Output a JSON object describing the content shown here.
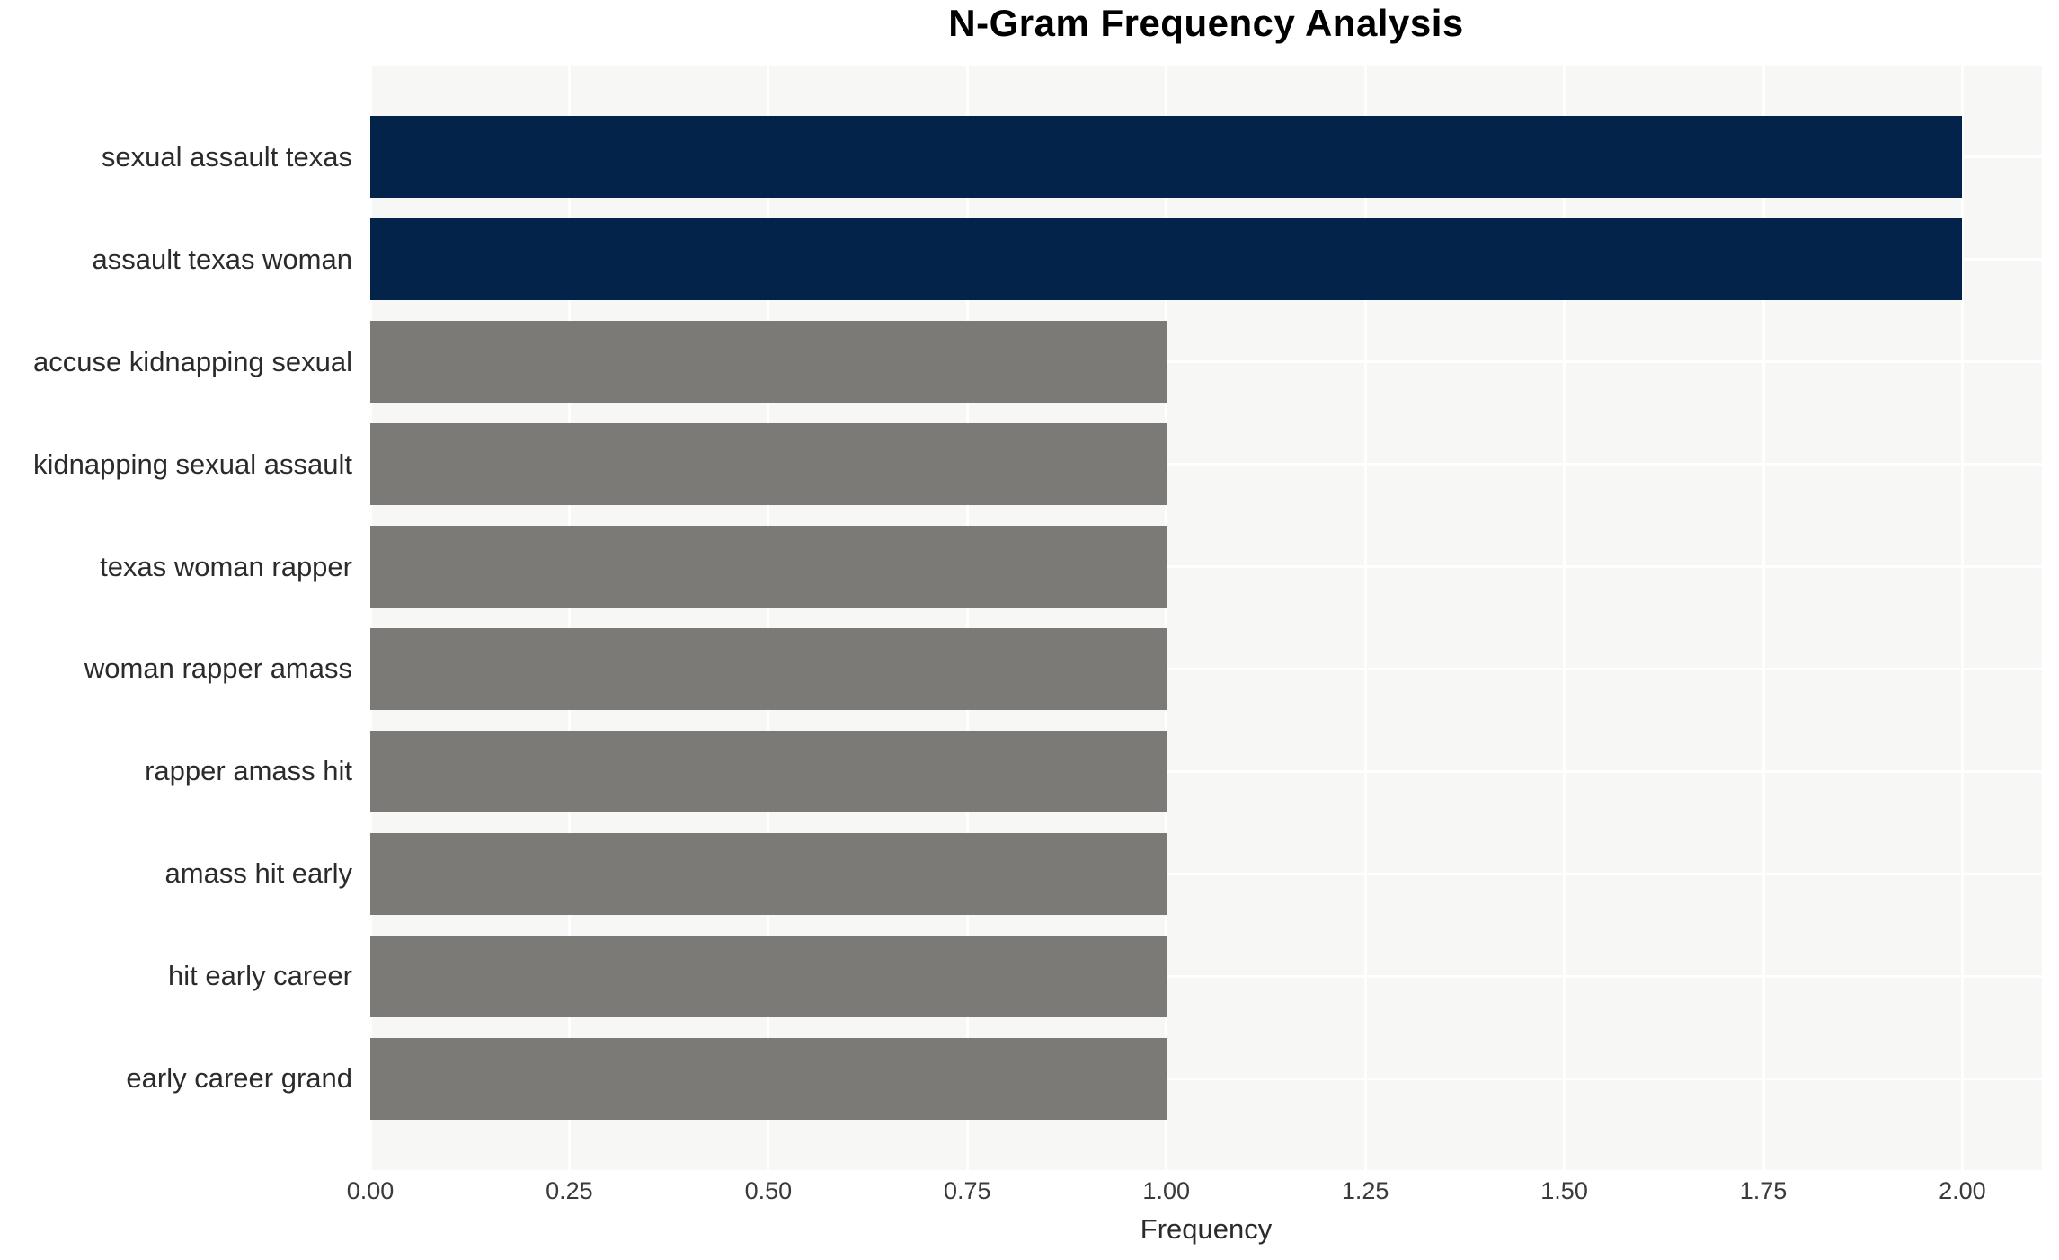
{
  "chart_data": {
    "type": "bar",
    "orientation": "horizontal",
    "title": "N-Gram Frequency Analysis",
    "xlabel": "Frequency",
    "ylabel": "",
    "categories": [
      "sexual assault texas",
      "assault texas woman",
      "accuse kidnapping sexual",
      "kidnapping sexual assault",
      "texas woman rapper",
      "woman rapper amass",
      "rapper amass hit",
      "amass hit early",
      "hit early career",
      "early career grand"
    ],
    "values": [
      2,
      2,
      1,
      1,
      1,
      1,
      1,
      1,
      1,
      1
    ],
    "bar_colors": [
      "#03234b",
      "#03234b",
      "#7b7a76",
      "#7b7a76",
      "#7b7a76",
      "#7b7a76",
      "#7b7a76",
      "#7b7a76",
      "#7b7a76",
      "#7b7a76"
    ],
    "x_tick_labels": [
      "0.00",
      "0.25",
      "0.50",
      "0.75",
      "1.00",
      "1.25",
      "1.50",
      "1.75",
      "2.00"
    ],
    "x_tick_values": [
      0,
      0.25,
      0.5,
      0.75,
      1.0,
      1.25,
      1.5,
      1.75,
      2.0
    ],
    "xlim": [
      0,
      2.1
    ],
    "grid": true,
    "legend": false,
    "colors": {
      "highlight_bar": "#03234b",
      "default_bar": "#7b7a76",
      "plot_background": "#f7f7f6",
      "grid_line": "#ffffff",
      "title_text": "#000000",
      "label_text": "#2b2b2b"
    }
  }
}
